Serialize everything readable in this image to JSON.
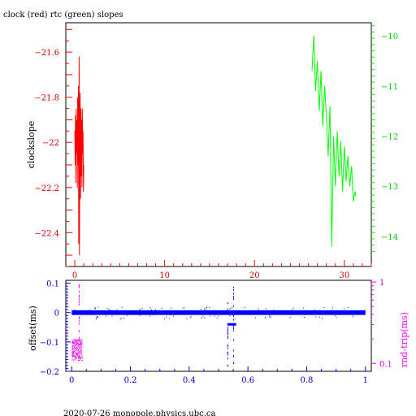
{
  "page": {
    "title": "clock (red) rtc (green) slopes",
    "footer": "2020-07-26  monopole.physics.ubc.ca"
  },
  "colors": {
    "black": "#000000",
    "red": "#ff0000",
    "green": "#00ff00",
    "blue": "#0000ff",
    "magenta": "#ff00ff",
    "clock_tick": "#cc0000",
    "rtc_tick": "#00cc00",
    "offset_tick": "#0000cc",
    "rtt_tick": "#cc00cc"
  },
  "chart_data": [
    {
      "type": "line",
      "title": "clock (red) rtc (green) slopes",
      "ylabel": "clockslope",
      "xlim": [
        -1,
        33
      ],
      "x_ticks": [
        "0",
        "10",
        "20",
        "30"
      ],
      "ylim": [
        -22.55,
        -21.47
      ],
      "y_ticks": [
        "-21.6",
        "-21.8",
        "-22",
        "-22.2",
        "-22.4"
      ],
      "y2lim": [
        -14.6,
        -9.74
      ],
      "y2_ticks": [
        "-10",
        "-11",
        "-12",
        "-13",
        "-14"
      ],
      "grid": false,
      "series": [
        {
          "name": "clock",
          "color": "red",
          "axis": "left",
          "x_range": [
            0.0,
            1.0
          ],
          "points": [
            [
              0.0,
              -21.95
            ],
            [
              0.04,
              -22.1
            ],
            [
              0.08,
              -21.88
            ],
            [
              0.12,
              -22.18
            ],
            [
              0.16,
              -21.85
            ],
            [
              0.2,
              -22.05
            ],
            [
              0.24,
              -21.9
            ],
            [
              0.28,
              -22.2
            ],
            [
              0.32,
              -21.8
            ],
            [
              0.36,
              -22.1
            ],
            [
              0.4,
              -21.75
            ],
            [
              0.44,
              -22.45
            ],
            [
              0.48,
              -21.62
            ],
            [
              0.52,
              -22.5
            ],
            [
              0.56,
              -21.95
            ],
            [
              0.6,
              -21.78
            ],
            [
              0.64,
              -22.25
            ],
            [
              0.68,
              -21.85
            ],
            [
              0.72,
              -22.15
            ],
            [
              0.76,
              -21.9
            ],
            [
              0.8,
              -22.2
            ],
            [
              0.84,
              -21.85
            ],
            [
              0.88,
              -22.05
            ],
            [
              0.92,
              -21.95
            ],
            [
              0.96,
              -22.22
            ],
            [
              1.0,
              -22.1
            ]
          ]
        },
        {
          "name": "rtc",
          "color": "green",
          "axis": "right",
          "x_range": [
            26.4,
            31.3
          ],
          "points": [
            [
              26.4,
              -10.7
            ],
            [
              26.6,
              -10.0
            ],
            [
              26.8,
              -11.1
            ],
            [
              27.0,
              -10.5
            ],
            [
              27.2,
              -11.5
            ],
            [
              27.4,
              -10.7
            ],
            [
              27.6,
              -11.8
            ],
            [
              27.8,
              -11.0
            ],
            [
              28.0,
              -11.6
            ],
            [
              28.2,
              -12.4
            ],
            [
              28.4,
              -11.4
            ],
            [
              28.6,
              -14.2
            ],
            [
              28.8,
              -12.0
            ],
            [
              29.0,
              -13.0
            ],
            [
              29.2,
              -11.9
            ],
            [
              29.4,
              -12.8
            ],
            [
              29.6,
              -12.1
            ],
            [
              29.8,
              -13.1
            ],
            [
              30.0,
              -12.2
            ],
            [
              30.2,
              -12.9
            ],
            [
              30.4,
              -12.4
            ],
            [
              30.6,
              -13.0
            ],
            [
              30.8,
              -12.6
            ],
            [
              31.0,
              -13.3
            ],
            [
              31.2,
              -13.1
            ],
            [
              31.3,
              -13.2
            ]
          ]
        }
      ]
    },
    {
      "type": "scatter",
      "ylabel": "offset(ms)",
      "y2label": "rnd-trip(ms)",
      "xlim": [
        -0.02,
        1.02
      ],
      "x_ticks": [
        "0",
        "0.2",
        "0.4",
        "0.6",
        "0.8",
        "1"
      ],
      "ylim": [
        -0.2,
        0.11
      ],
      "y_ticks": [
        "0.1",
        "0",
        "-0.1",
        "-0.2"
      ],
      "y2_scale": "log",
      "y2lim": [
        0.08,
        1.05
      ],
      "y2_ticks": [
        "1",
        "0.1"
      ],
      "grid": false,
      "series": [
        {
          "name": "offset",
          "color": "blue",
          "axis": "left",
          "baseline": 0.0,
          "x_range": [
            0.0,
            1.0
          ],
          "spikes": [
            {
              "x": 0.53,
              "y_min": -0.19,
              "y_max": 0.04
            },
            {
              "x": 0.55,
              "y_min": -0.17,
              "y_max": 0.09
            }
          ],
          "dip": {
            "x_range": [
              0.53,
              0.56
            ],
            "y": -0.04
          }
        },
        {
          "name": "rnd-trip",
          "color": "magenta",
          "axis": "right",
          "x_range": [
            0.0,
            0.035
          ],
          "y_range": [
            0.11,
            0.2
          ],
          "spike": {
            "x": 0.024,
            "y_max": 0.95
          }
        }
      ]
    }
  ]
}
